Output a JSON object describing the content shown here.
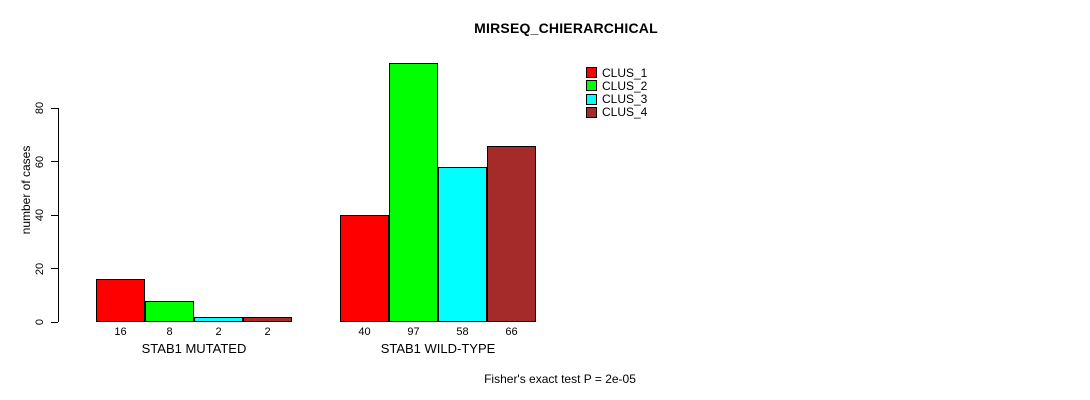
{
  "chart_data": {
    "type": "bar",
    "title": "MIRSEQ_CHIERARCHICAL",
    "xlabel": "",
    "ylabel": "number of cases",
    "yticks": [
      0,
      20,
      40,
      60,
      80
    ],
    "ylim": [
      0,
      80
    ],
    "grid": false,
    "legend_position": "top-right",
    "bar_value_labels_shown": true,
    "categories": [
      "STAB1 MUTATED",
      "STAB1 WILD-TYPE"
    ],
    "groups": [
      {
        "label": "STAB1 MUTATED",
        "values": [
          16,
          8,
          2,
          2
        ]
      },
      {
        "label": "STAB1 WILD-TYPE",
        "values": [
          40,
          97,
          58,
          66
        ]
      }
    ],
    "series": [
      {
        "name": "CLUS_1",
        "color": "#FF0000"
      },
      {
        "name": "CLUS_2",
        "color": "#00FF00"
      },
      {
        "name": "CLUS_3",
        "color": "#00FFFF"
      },
      {
        "name": "CLUS_4",
        "color": "#A52A2A"
      }
    ]
  },
  "annotation": "Fisher's exact test P = 2e-05",
  "colors": {
    "background": "#FFFFFF",
    "axis": "#000000",
    "text": "#000000"
  }
}
